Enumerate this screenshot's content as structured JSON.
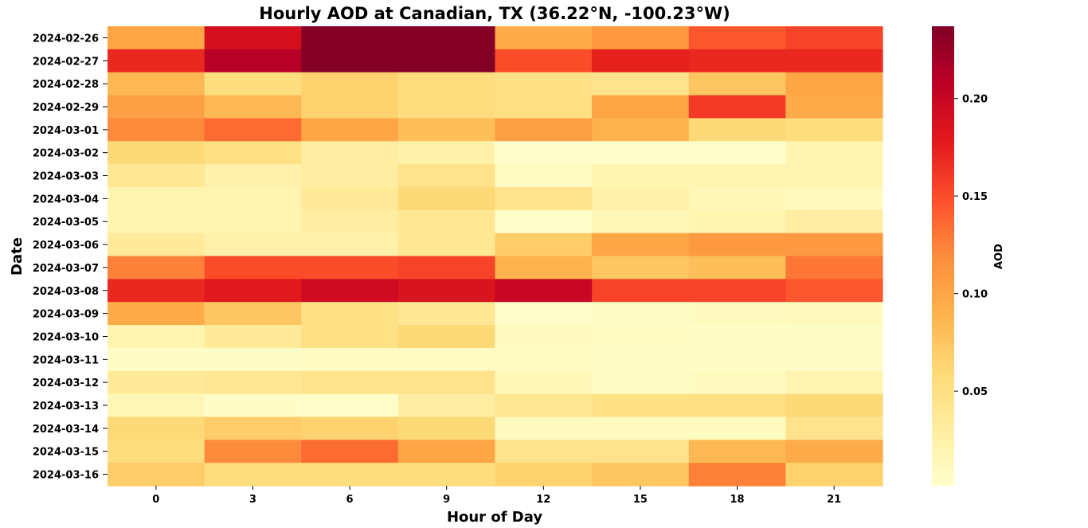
{
  "chart_data": {
    "type": "heatmap",
    "title": "Hourly AOD at Canadian, TX (36.22°N, -100.23°W)",
    "xlabel": "Hour of Day",
    "ylabel": "Date",
    "x": [
      "0",
      "3",
      "6",
      "9",
      "12",
      "15",
      "18",
      "21"
    ],
    "y": [
      "2024-02-26",
      "2024-02-27",
      "2024-02-28",
      "2024-02-29",
      "2024-03-01",
      "2024-03-02",
      "2024-03-03",
      "2024-03-04",
      "2024-03-05",
      "2024-03-06",
      "2024-03-07",
      "2024-03-08",
      "2024-03-09",
      "2024-03-10",
      "2024-03-11",
      "2024-03-12",
      "2024-03-13",
      "2024-03-14",
      "2024-03-15",
      "2024-03-16"
    ],
    "values": [
      [
        0.1,
        0.19,
        0.235,
        0.235,
        0.095,
        0.11,
        0.145,
        0.155
      ],
      [
        0.17,
        0.21,
        0.235,
        0.235,
        0.15,
        0.175,
        0.17,
        0.17
      ],
      [
        0.085,
        0.055,
        0.065,
        0.055,
        0.05,
        0.045,
        0.075,
        0.1
      ],
      [
        0.105,
        0.085,
        0.065,
        0.055,
        0.05,
        0.1,
        0.16,
        0.095
      ],
      [
        0.12,
        0.135,
        0.1,
        0.08,
        0.105,
        0.09,
        0.06,
        0.055
      ],
      [
        0.06,
        0.05,
        0.03,
        0.025,
        0.003,
        0.003,
        0.003,
        0.02
      ],
      [
        0.04,
        0.025,
        0.03,
        0.045,
        0.008,
        0.02,
        0.02,
        0.02
      ],
      [
        0.02,
        0.02,
        0.035,
        0.06,
        0.045,
        0.025,
        0.015,
        0.012
      ],
      [
        0.02,
        0.02,
        0.03,
        0.04,
        0.002,
        0.015,
        0.02,
        0.03
      ],
      [
        0.035,
        0.025,
        0.025,
        0.04,
        0.07,
        0.1,
        0.11,
        0.11
      ],
      [
        0.125,
        0.15,
        0.15,
        0.155,
        0.09,
        0.075,
        0.08,
        0.13
      ],
      [
        0.17,
        0.18,
        0.195,
        0.185,
        0.2,
        0.155,
        0.155,
        0.145
      ],
      [
        0.095,
        0.075,
        0.05,
        0.04,
        0.003,
        0.005,
        0.01,
        0.012
      ],
      [
        0.02,
        0.035,
        0.05,
        0.06,
        0.01,
        0.008,
        0.005,
        0.005
      ],
      [
        0.005,
        0.005,
        0.008,
        0.008,
        0.008,
        0.005,
        0.005,
        0.005
      ],
      [
        0.035,
        0.04,
        0.045,
        0.045,
        0.015,
        0.005,
        0.01,
        0.02
      ],
      [
        0.015,
        0.005,
        0.003,
        0.03,
        0.04,
        0.05,
        0.05,
        0.06
      ],
      [
        0.06,
        0.07,
        0.065,
        0.06,
        0.01,
        0.01,
        0.01,
        0.045
      ],
      [
        0.055,
        0.12,
        0.135,
        0.1,
        0.045,
        0.045,
        0.085,
        0.095
      ],
      [
        0.07,
        0.055,
        0.055,
        0.055,
        0.065,
        0.075,
        0.125,
        0.065
      ]
    ],
    "colorbar": {
      "label": "AOD",
      "ticks": [
        0.05,
        0.1,
        0.15,
        0.2
      ],
      "tick_labels": [
        "0.05",
        "0.10",
        "0.15",
        "0.20"
      ],
      "min": 0.0015,
      "max": 0.237
    },
    "colormap": [
      "#ffffcc",
      "#ffeda0",
      "#fed976",
      "#feb24c",
      "#fd8d3c",
      "#fc4e2a",
      "#e31a1c",
      "#bd0026",
      "#800026"
    ],
    "grid": false
  }
}
